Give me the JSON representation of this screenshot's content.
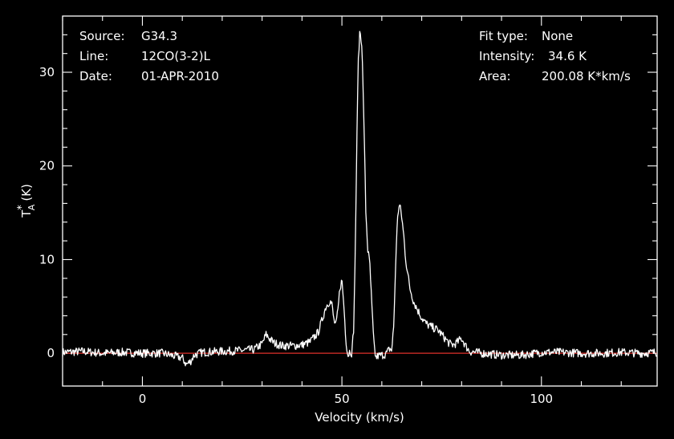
{
  "chart_data": {
    "type": "line",
    "title": "",
    "xlabel": "Velocity (km/s)",
    "ylabel": "T",
    "ylabel_sub": "A",
    "ylabel_sup": "*",
    "ylabel_unit": "(K)",
    "xlim": [
      -20,
      129
    ],
    "ylim": [
      -3.5,
      36
    ],
    "x_ticks": [
      0,
      50,
      100
    ],
    "y_ticks": [
      0,
      10,
      20,
      30
    ],
    "x_tick_labels": [
      "0",
      "50",
      "100"
    ],
    "y_tick_labels": [
      "0",
      "10",
      "20",
      "30"
    ],
    "grid": false,
    "baseline": 0,
    "colors": {
      "background": "#000000",
      "spectrum": "#ffffff",
      "baseline": "#e0302a",
      "axes": "#ffffff"
    },
    "info_left": [
      {
        "key": "Source:",
        "value": "G34.3"
      },
      {
        "key": "Line:",
        "value": "12CO(3-2)L"
      },
      {
        "key": "Date:",
        "value": "01-APR-2010"
      }
    ],
    "info_right": [
      {
        "key": "Fit type:",
        "value": "None"
      },
      {
        "key": "Intensity:",
        "value": "34.6 K"
      },
      {
        "key": "Area:",
        "value": "200.08 K*km/s"
      }
    ],
    "series": [
      {
        "x": [
          -20,
          -15,
          -10,
          -5,
          0,
          5,
          10,
          11,
          12,
          13,
          15,
          20,
          25,
          28,
          30,
          31,
          32,
          33,
          35,
          38,
          40,
          42,
          44,
          45,
          46,
          47,
          47.5,
          48,
          48.5,
          49,
          49.5,
          50,
          50.5,
          51,
          51.5,
          52,
          52.5,
          53,
          53.5,
          54,
          54.5,
          55,
          55.5,
          56,
          56.5,
          57,
          57.5,
          58,
          58.5,
          59,
          60,
          61,
          62,
          62.5,
          63,
          63.5,
          64,
          64.5,
          65,
          65.5,
          66,
          67,
          68,
          69,
          70,
          71,
          72,
          73,
          74,
          75,
          76,
          77,
          78,
          79,
          80,
          81,
          82,
          85,
          90,
          95,
          100,
          105,
          110,
          115,
          120,
          125,
          129
        ],
        "y": [
          0.1,
          0.2,
          0.0,
          0.1,
          0.0,
          0.0,
          -0.5,
          -1.2,
          -0.9,
          -0.2,
          0.1,
          0.2,
          0.3,
          0.4,
          1.0,
          2.0,
          1.5,
          1.1,
          0.8,
          0.8,
          0.9,
          1.2,
          2.2,
          3.5,
          5.0,
          5.6,
          5.2,
          3.5,
          3.0,
          4.5,
          7.0,
          7.8,
          5.0,
          1.5,
          -0.3,
          0.3,
          0.0,
          3.0,
          15.0,
          30.0,
          34.6,
          33.0,
          25.0,
          15.0,
          11.0,
          9.5,
          5.0,
          1.0,
          -0.5,
          -0.3,
          -0.2,
          -0.1,
          0.5,
          0.3,
          3.0,
          10.0,
          15.0,
          15.8,
          14.5,
          12.5,
          10.0,
          7.0,
          5.5,
          4.6,
          3.8,
          3.2,
          2.9,
          2.7,
          2.5,
          2.0,
          1.5,
          1.0,
          0.9,
          1.2,
          1.6,
          0.8,
          0.2,
          0.0,
          -0.2,
          -0.2,
          0.1,
          0.1,
          0.0,
          0.0,
          0.1,
          0.0,
          0.1
        ]
      }
    ]
  }
}
